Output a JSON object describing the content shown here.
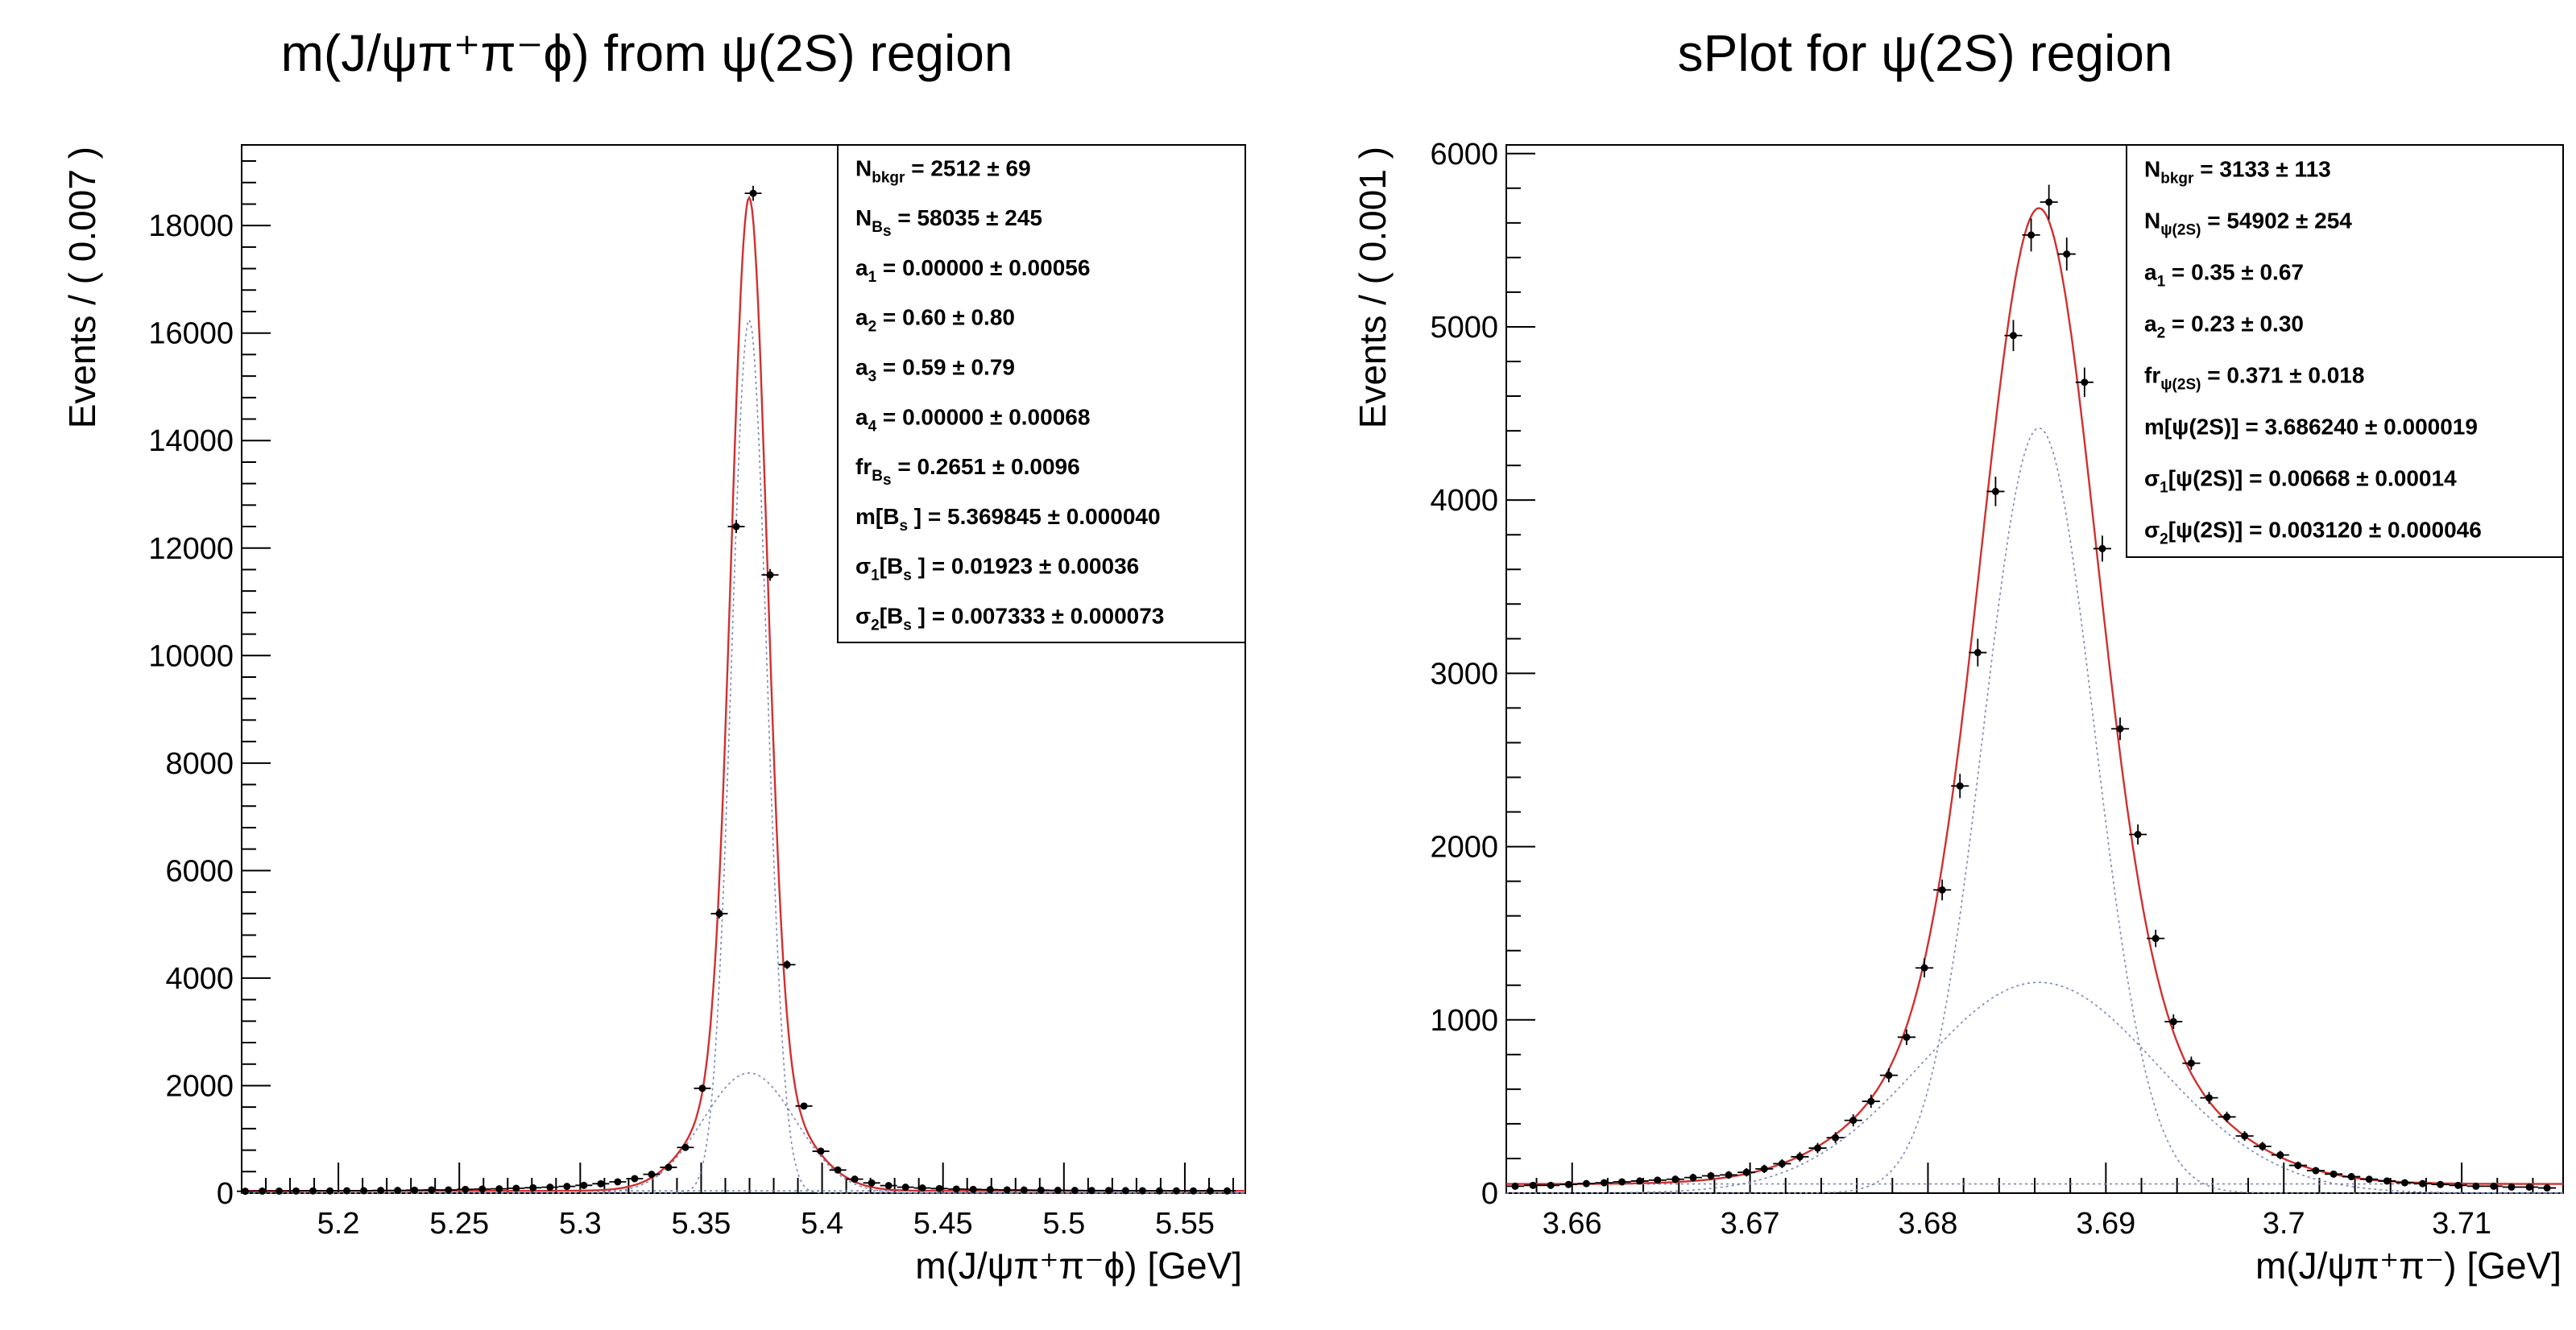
{
  "colors": {
    "fit_total": "#d03030",
    "fit_component": "#7a86b8",
    "points": "#000000",
    "frame": "#000000"
  },
  "chart_data": [
    {
      "type": "scatter",
      "title": "m(J/ψπ⁺π⁻ϕ) from ψ(2S) region",
      "xlabel": "m(J/ψπ⁺π⁻ϕ) [GeV]",
      "ylabel": "Events / ( 0.007 )",
      "xlim": [
        5.16,
        5.575
      ],
      "ylim": [
        0,
        19500
      ],
      "xticks": [
        5.2,
        5.25,
        5.3,
        5.35,
        5.4,
        5.45,
        5.5,
        5.55
      ],
      "xtick_labels": [
        "5.2",
        "5.25",
        "5.3",
        "5.35",
        "5.4",
        "5.45",
        "5.5",
        "5.55"
      ],
      "yticks": [
        0,
        2000,
        4000,
        6000,
        8000,
        10000,
        12000,
        14000,
        16000,
        18000
      ],
      "ytick_labels": [
        "0",
        "2000",
        "4000",
        "6000",
        "8000",
        "10000",
        "12000",
        "14000",
        "16000",
        "18000"
      ],
      "grid": false,
      "legend": "top-right",
      "stats": [
        {
          "main": "N",
          "sub": "bkgr",
          "value": "=  2512 ± 69"
        },
        {
          "main": "N",
          "sub": "B",
          "subsub": "s",
          "value": "=  58035 ± 245"
        },
        {
          "main": "a",
          "sub": "1",
          "value": "=  0.00000 ± 0.00056"
        },
        {
          "main": "a",
          "sub": "2",
          "value": "=  0.60 ± 0.80"
        },
        {
          "main": "a",
          "sub": "3",
          "value": "=  0.59 ± 0.79"
        },
        {
          "main": "a",
          "sub": "4",
          "value": "=  0.00000 ± 0.00068"
        },
        {
          "main": "fr",
          "sub": "B",
          "subsub": "s",
          "value": "=  0.2651 ± 0.0096"
        },
        {
          "main": "m[B",
          "sub": "s",
          "value": "]  =  5.369845 ± 0.000040"
        },
        {
          "main": "σ",
          "sub": "1",
          "mid": "[B",
          "sub2": "s",
          "value": "]  =  0.01923 ± 0.00036"
        },
        {
          "main": "σ",
          "sub": "2",
          "mid": "[B",
          "sub2": "s",
          "value": "]  =  0.007333 ± 0.000073"
        }
      ],
      "x": [
        5.1615,
        5.1685,
        5.1755,
        5.1825,
        5.1895,
        5.1965,
        5.2035,
        5.2105,
        5.2175,
        5.2245,
        5.2315,
        5.2385,
        5.2455,
        5.2525,
        5.2595,
        5.2665,
        5.2735,
        5.2805,
        5.2875,
        5.2945,
        5.3015,
        5.3085,
        5.3155,
        5.3225,
        5.3295,
        5.3365,
        5.3435,
        5.3505,
        5.3575,
        5.3645,
        5.3715,
        5.3785,
        5.3855,
        5.3925,
        5.3995,
        5.4065,
        5.4135,
        5.4205,
        5.4275,
        5.4345,
        5.4415,
        5.4485,
        5.4555,
        5.4625,
        5.4695,
        5.4765,
        5.4835,
        5.4905,
        5.4975,
        5.5045,
        5.5115,
        5.5185,
        5.5255,
        5.5325,
        5.5395,
        5.5465,
        5.5535,
        5.5605,
        5.5675
      ],
      "y": [
        35,
        38,
        38,
        40,
        42,
        42,
        45,
        45,
        50,
        50,
        55,
        60,
        60,
        70,
        75,
        80,
        90,
        100,
        110,
        125,
        145,
        175,
        210,
        270,
        350,
        480,
        850,
        1950,
        5200,
        12400,
        18600,
        11500,
        4250,
        1620,
        780,
        430,
        260,
        190,
        140,
        110,
        95,
        85,
        75,
        70,
        65,
        60,
        58,
        55,
        52,
        50,
        48,
        48,
        46,
        44,
        43,
        43,
        42,
        42,
        42
      ],
      "errors": [
        12,
        12,
        12,
        12,
        12,
        12,
        12,
        12,
        12,
        12,
        12,
        12,
        12,
        12,
        12,
        12,
        15,
        15,
        15,
        15,
        18,
        18,
        20,
        25,
        30,
        35,
        40,
        60,
        90,
        120,
        140,
        110,
        80,
        50,
        35,
        25,
        20,
        18,
        15,
        15,
        15,
        12,
        12,
        12,
        12,
        12,
        12,
        12,
        12,
        12,
        12,
        12,
        12,
        12,
        12,
        12,
        12,
        12,
        12
      ],
      "fit": {
        "mean": 5.369845,
        "sigma1": 0.01923,
        "sigma2": 0.007333,
        "frac": 0.2651,
        "n_sig": 58035,
        "n_bkg": 2512,
        "bin": 0.007
      }
    },
    {
      "type": "scatter",
      "title": "sPlot for ψ(2S) region",
      "xlabel": "m(J/ψπ⁺π⁻) [GeV]",
      "ylabel": "Events / ( 0.001 )",
      "xlim": [
        3.6563,
        3.7157
      ],
      "ylim": [
        0,
        6050
      ],
      "xticks": [
        3.66,
        3.67,
        3.68,
        3.69,
        3.7,
        3.71
      ],
      "xtick_labels": [
        "3.66",
        "3.67",
        "3.68",
        "3.69",
        "3.7",
        "3.71"
      ],
      "yticks": [
        0,
        1000,
        2000,
        3000,
        4000,
        5000,
        6000
      ],
      "ytick_labels": [
        "0",
        "1000",
        "2000",
        "3000",
        "4000",
        "5000",
        "6000"
      ],
      "grid": false,
      "legend": "top-right",
      "stats": [
        {
          "main": "N",
          "sub": "bkgr",
          "value": "=  3133 ± 113"
        },
        {
          "main": "N",
          "sub": "ψ(2S)",
          "value": "=  54902 ± 254"
        },
        {
          "main": "a",
          "sub": "1",
          "value": "=  0.35 ± 0.67"
        },
        {
          "main": "a",
          "sub": "2",
          "value": "=  0.23 ± 0.30"
        },
        {
          "main": "fr",
          "sub": "ψ(2S)",
          "value": "=  0.371 ± 0.018"
        },
        {
          "main": "m[ψ(2S)]",
          "value": "=  3.686240 ± 0.000019"
        },
        {
          "main": "σ",
          "sub": "1",
          "mid": "[ψ(2S)]",
          "value": "=  0.00668 ± 0.00014"
        },
        {
          "main": "σ",
          "sub": "2",
          "mid": "[ψ(2S)]",
          "value": "=  0.003120 ± 0.000046"
        }
      ],
      "x": [
        3.6568,
        3.6578,
        3.6588,
        3.6598,
        3.6608,
        3.6618,
        3.6628,
        3.6638,
        3.6648,
        3.6658,
        3.6668,
        3.6678,
        3.6688,
        3.6698,
        3.6708,
        3.6718,
        3.6728,
        3.6738,
        3.6748,
        3.6758,
        3.6768,
        3.6778,
        3.6788,
        3.6798,
        3.6808,
        3.6818,
        3.6828,
        3.6838,
        3.6848,
        3.6858,
        3.6868,
        3.6878,
        3.6888,
        3.6898,
        3.6908,
        3.6918,
        3.6928,
        3.6938,
        3.6948,
        3.6958,
        3.6968,
        3.6978,
        3.6988,
        3.6998,
        3.7008,
        3.7018,
        3.7028,
        3.7038,
        3.7048,
        3.7058,
        3.7068,
        3.7078,
        3.7088,
        3.7098,
        3.7108,
        3.7118,
        3.7128,
        3.7138,
        3.7148
      ],
      "y": [
        40,
        45,
        45,
        50,
        55,
        60,
        65,
        70,
        75,
        80,
        90,
        100,
        105,
        120,
        140,
        170,
        210,
        260,
        320,
        420,
        530,
        680,
        900,
        1300,
        1750,
        2350,
        3120,
        4050,
        4950,
        5530,
        5720,
        5420,
        4680,
        3720,
        2680,
        2070,
        1470,
        990,
        750,
        550,
        440,
        330,
        270,
        220,
        160,
        130,
        110,
        95,
        80,
        70,
        60,
        55,
        50,
        45,
        40,
        40,
        35,
        35,
        30
      ],
      "errors": [
        18,
        18,
        18,
        20,
        20,
        20,
        20,
        20,
        20,
        22,
        22,
        22,
        22,
        24,
        24,
        26,
        28,
        30,
        32,
        35,
        38,
        40,
        45,
        55,
        60,
        70,
        80,
        85,
        90,
        95,
        100,
        95,
        85,
        75,
        65,
        58,
        50,
        42,
        38,
        34,
        30,
        28,
        26,
        24,
        22,
        20,
        20,
        20,
        18,
        18,
        18,
        18,
        18,
        18,
        18,
        18,
        18,
        18,
        18
      ],
      "fit": {
        "mean": 3.68624,
        "sigma1": 0.00668,
        "sigma2": 0.00312,
        "frac": 0.371,
        "n_sig": 54902,
        "n_bkg": 3133,
        "bin": 0.001
      }
    }
  ]
}
